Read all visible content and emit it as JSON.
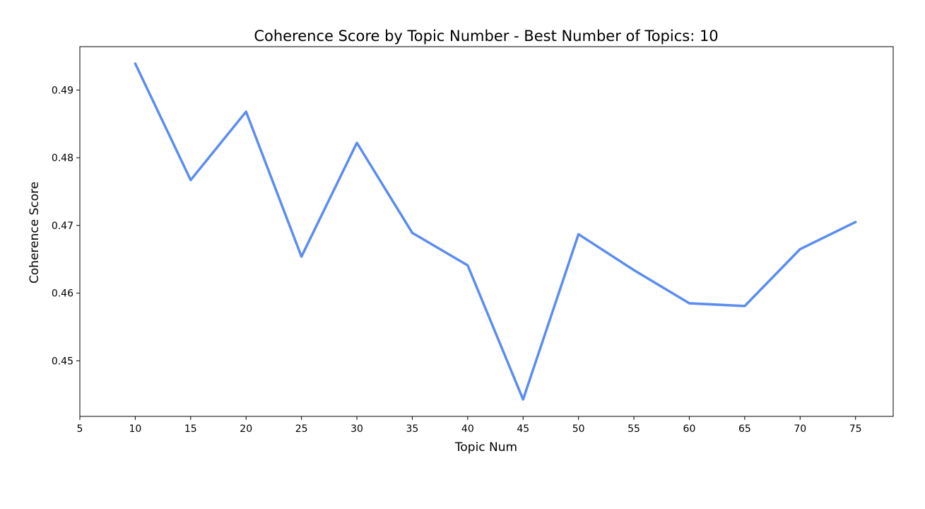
{
  "chart_data": {
    "type": "line",
    "title": "Coherence Score by Topic Number - Best Number of Topics: 10",
    "xlabel": "Topic Num",
    "ylabel": "Coherence Score",
    "x": [
      10,
      15,
      20,
      25,
      30,
      35,
      40,
      45,
      50,
      55,
      60,
      65,
      70,
      75
    ],
    "series": [
      {
        "values": [
          0.4939,
          0.4767,
          0.4868,
          0.4654,
          0.4822,
          0.4689,
          0.4641,
          0.4443,
          0.4687,
          0.4634,
          0.4585,
          0.4581,
          0.4665,
          0.4705
        ],
        "color": "#5b8def"
      }
    ],
    "xlim": [
      5,
      78.4
    ],
    "ylim": [
      0.4418,
      0.4964
    ],
    "xticks": [
      5,
      10,
      15,
      20,
      25,
      30,
      35,
      40,
      45,
      50,
      55,
      60,
      65,
      70,
      75
    ],
    "yticks": [
      0.45,
      0.46,
      0.47,
      0.48,
      0.49
    ],
    "ytick_labels": [
      "0.45",
      "0.46",
      "0.47",
      "0.48",
      "0.49"
    ],
    "grid": false,
    "legend": "none"
  }
}
